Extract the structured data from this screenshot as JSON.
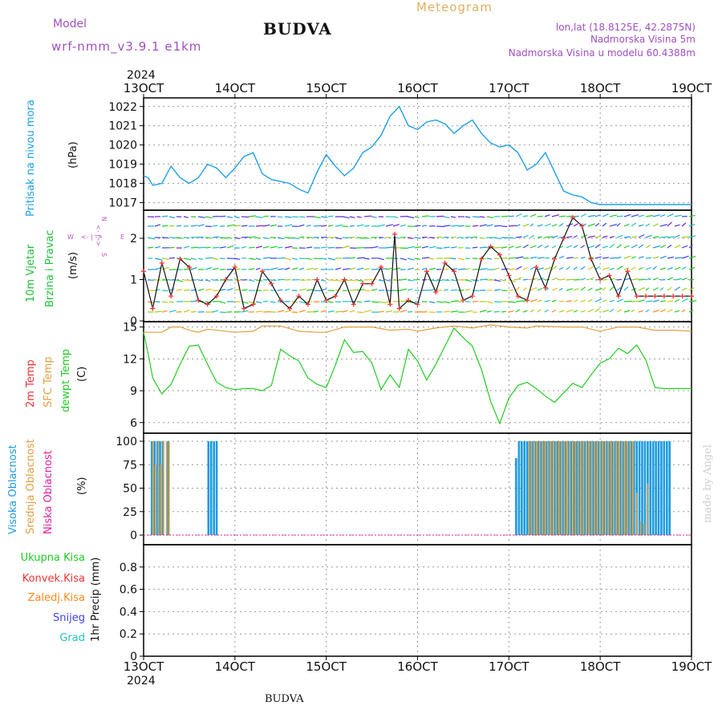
{
  "header": {
    "model_label": "Model",
    "model_name": "wrf-nmm_v3.9.1 e1km",
    "station": "BUDVA",
    "meteogram": "Meteogram",
    "lonlat": "lon,lat (18.8125E, 42.2875N)",
    "altitude": "Nadmorska Visina 5m",
    "model_altitude": "Nadmorska Visina u modelu 60.4388m",
    "year": "2024",
    "footer_station": "BUDVA",
    "watermark": "made by Angel"
  },
  "colors": {
    "pressure": "#1ea0e6",
    "wind_title": "#1fbf3a",
    "temp_2m": "#ee3333",
    "sfc_temp": "#e0a040",
    "dewpt": "#22cc22",
    "cloud_high": "#1e9be0",
    "cloud_mid": "#e0a040",
    "cloud_low": "#e020a0",
    "ukupna": "#22cc22",
    "konvek": "#ee3333",
    "zaledj": "#ff8820",
    "snijeg": "#4040ee",
    "grad": "#20c0c0",
    "direction": "#c050d0"
  },
  "x_ticks": [
    "13OCT",
    "14OCT",
    "15OCT",
    "16OCT",
    "17OCT",
    "18OCT",
    "19OCT"
  ],
  "panels": {
    "pressure": {
      "label": "Pritisak na nivou mora",
      "unit": "(hPa)"
    },
    "wind": {
      "label1": "10m Vjetar",
      "label2": "Brzina i Pravac",
      "unit": "(m/s)",
      "dir_n": "N",
      "dir_s": "S",
      "dir_w": "W",
      "dir_e": "E",
      "dir_arrow_h": "<- | ->",
      "dir_arrow_v": "<- | ->"
    },
    "temp": {
      "label1": "2m Temp",
      "label2": "SFC Temp",
      "label3": "dewpt Temp",
      "unit": "(C)"
    },
    "cloud": {
      "label1": "Visoka Oblacnost",
      "label2": "Srednja Oblacnost",
      "label3": "Niska Oblacnost",
      "unit": "(%)"
    },
    "precip": {
      "label1": "Ukupna Kisa",
      "label2": "Konvek.Kisa",
      "label3": "Zaledj.Kisa",
      "label4": "Snijeg",
      "label5": "Grad",
      "unit": "1hr Precip (mm)"
    }
  },
  "chart_data": [
    {
      "type": "line",
      "title": "Pritisak na nivou mora",
      "ylabel": "(hPa)",
      "xlim": [
        13,
        19
      ],
      "ylim": [
        1017,
        1022.3
      ],
      "yticks": [
        1017,
        1018,
        1019,
        1020,
        1021,
        1022
      ],
      "series": [
        {
          "name": "Pritisak na nivou mora",
          "x": [
            13.0,
            13.05,
            13.1,
            13.2,
            13.3,
            13.4,
            13.5,
            13.6,
            13.7,
            13.8,
            13.9,
            14.0,
            14.1,
            14.2,
            14.3,
            14.4,
            14.5,
            14.6,
            14.7,
            14.8,
            14.9,
            15.0,
            15.1,
            15.2,
            15.3,
            15.4,
            15.5,
            15.6,
            15.7,
            15.8,
            15.9,
            16.0,
            16.1,
            16.2,
            16.3,
            16.4,
            16.5,
            16.6,
            16.7,
            16.8,
            16.9,
            17.0,
            17.1,
            17.2,
            17.3,
            17.4,
            17.5,
            17.6,
            17.7,
            17.8,
            17.9,
            18.0,
            18.1,
            18.2,
            18.3,
            18.4,
            18.5,
            18.6,
            18.7,
            18.8,
            18.9,
            19.0
          ],
          "values": [
            1018.4,
            1018.3,
            1017.9,
            1018.0,
            1018.9,
            1018.3,
            1018.0,
            1018.3,
            1019.0,
            1018.8,
            1018.3,
            1018.8,
            1019.4,
            1019.6,
            1018.5,
            1018.2,
            1018.1,
            1018.0,
            1017.7,
            1017.5,
            1018.6,
            1019.5,
            1018.9,
            1018.4,
            1018.8,
            1019.6,
            1019.9,
            1020.5,
            1021.5,
            1022.0,
            1021.0,
            1020.8,
            1021.2,
            1021.3,
            1021.1,
            1020.6,
            1021.0,
            1021.3,
            1020.6,
            1020.1,
            1019.9,
            1020.0,
            1019.6,
            1018.7,
            1019.0,
            1019.6,
            1018.6,
            1017.6,
            1017.4,
            1017.3,
            1017.0,
            1016.9,
            1016.9,
            1016.9,
            1016.9,
            1016.9,
            1016.9,
            1016.9,
            1016.9,
            1016.9,
            1016.9,
            1016.9
          ]
        }
      ]
    },
    {
      "type": "line",
      "title": "10m Vjetar Brzina i Pravac",
      "ylabel": "(m/s)",
      "xlim": [
        13,
        19
      ],
      "ylim": [
        0,
        2.7
      ],
      "yticks": [
        0,
        1,
        2
      ],
      "series": [
        {
          "name": "10m Vjetar",
          "x": [
            13.0,
            13.1,
            13.2,
            13.3,
            13.4,
            13.5,
            13.6,
            13.7,
            13.8,
            13.9,
            14.0,
            14.1,
            14.2,
            14.3,
            14.4,
            14.5,
            14.6,
            14.7,
            14.8,
            14.9,
            15.0,
            15.1,
            15.2,
            15.3,
            15.4,
            15.5,
            15.6,
            15.7,
            15.75,
            15.8,
            15.9,
            16.0,
            16.1,
            16.2,
            16.3,
            16.4,
            16.5,
            16.6,
            16.7,
            16.8,
            16.9,
            17.0,
            17.1,
            17.2,
            17.3,
            17.4,
            17.5,
            17.6,
            17.7,
            17.8,
            17.9,
            18.0,
            18.1,
            18.2,
            18.3,
            18.4,
            18.5,
            18.6,
            18.7,
            18.8,
            18.9,
            19.0
          ],
          "values": [
            1.2,
            0.3,
            1.4,
            0.6,
            1.5,
            1.3,
            0.5,
            0.4,
            0.6,
            1.0,
            1.3,
            0.3,
            0.4,
            1.2,
            0.9,
            0.5,
            0.3,
            0.6,
            0.4,
            1.0,
            0.5,
            0.6,
            1.0,
            0.4,
            0.9,
            0.9,
            1.3,
            0.4,
            2.1,
            0.3,
            0.5,
            0.4,
            1.2,
            0.7,
            1.4,
            1.2,
            0.5,
            0.6,
            1.5,
            1.8,
            1.6,
            1.1,
            0.6,
            0.5,
            1.3,
            0.8,
            1.5,
            2.0,
            2.5,
            2.3,
            1.5,
            1.0,
            1.1,
            0.6,
            1.2,
            0.6,
            0.6,
            0.6,
            0.6,
            0.6,
            0.6,
            0.6
          ]
        }
      ]
    },
    {
      "type": "line",
      "title": "2m Temp / SFC Temp / dewpt Temp",
      "ylabel": "(C)",
      "xlim": [
        13,
        19
      ],
      "ylim": [
        5,
        15.5
      ],
      "yticks": [
        6,
        9,
        12,
        15
      ],
      "series": [
        {
          "name": "SFC Temp",
          "x": [
            13.0,
            13.2,
            13.3,
            13.4,
            13.5,
            13.6,
            13.7,
            14.0,
            14.2,
            14.3,
            14.5,
            14.7,
            14.9,
            15.0,
            15.2,
            15.5,
            15.7,
            15.9,
            16.0,
            16.2,
            16.4,
            16.6,
            16.8,
            17.0,
            17.2,
            17.3,
            17.6,
            17.8,
            18.0,
            18.2,
            18.4,
            18.6,
            18.8,
            19.0
          ],
          "values": [
            14.5,
            14.5,
            15.0,
            15.0,
            14.7,
            14.5,
            14.8,
            14.5,
            14.6,
            15.1,
            15.1,
            14.6,
            14.5,
            14.5,
            15.0,
            15.0,
            14.7,
            14.8,
            14.6,
            14.9,
            15.1,
            14.9,
            15.2,
            15.0,
            14.9,
            15.1,
            15.0,
            15.0,
            14.6,
            15.0,
            15.0,
            14.7,
            14.7,
            14.6
          ]
        },
        {
          "name": "dewpt Temp",
          "x": [
            13.0,
            13.05,
            13.1,
            13.2,
            13.3,
            13.4,
            13.5,
            13.6,
            13.7,
            13.8,
            13.9,
            14.0,
            14.1,
            14.2,
            14.3,
            14.4,
            14.5,
            14.6,
            14.7,
            14.8,
            14.9,
            15.0,
            15.1,
            15.2,
            15.3,
            15.4,
            15.5,
            15.6,
            15.7,
            15.8,
            15.9,
            16.0,
            16.1,
            16.2,
            16.3,
            16.4,
            16.5,
            16.6,
            16.7,
            16.8,
            16.9,
            17.0,
            17.1,
            17.2,
            17.3,
            17.4,
            17.5,
            17.6,
            17.7,
            17.8,
            17.9,
            18.0,
            18.1,
            18.2,
            18.3,
            18.4,
            18.5,
            18.6,
            18.7,
            18.8,
            18.9,
            19.0
          ],
          "values": [
            14.5,
            12.5,
            10.2,
            8.7,
            9.6,
            11.5,
            13.2,
            13.3,
            11.5,
            9.8,
            9.3,
            9.1,
            9.2,
            9.2,
            9.0,
            9.5,
            12.9,
            12.3,
            11.8,
            10.2,
            9.6,
            9.3,
            11.4,
            13.8,
            12.6,
            12.7,
            11.6,
            9.1,
            10.5,
            9.3,
            12.9,
            11.8,
            10.0,
            11.5,
            13.2,
            14.9,
            14.0,
            13.2,
            11.0,
            8.0,
            5.9,
            8.3,
            9.5,
            9.8,
            9.2,
            8.5,
            7.9,
            8.8,
            9.7,
            9.3,
            10.5,
            11.6,
            12.0,
            13.0,
            12.5,
            13.3,
            11.9,
            9.3,
            9.2,
            9.2,
            9.2,
            9.2
          ]
        }
      ]
    },
    {
      "type": "bar",
      "title": "Visoka / Srednja / Niska Oblacnost",
      "ylabel": "(%)",
      "xlim": [
        13,
        19
      ],
      "ylim": [
        0,
        100
      ],
      "yticks": [
        0,
        25,
        50,
        75,
        100
      ],
      "series": [
        {
          "name": "Visoka Oblacnost",
          "x": [
            13.09,
            13.12,
            13.15,
            13.18,
            13.21,
            13.27,
            13.71,
            13.74,
            13.77,
            13.8,
            17.08,
            17.11,
            17.14,
            17.17,
            17.2,
            17.23,
            17.26,
            17.29,
            17.32,
            17.35,
            17.38,
            17.41,
            17.44,
            17.47,
            17.5,
            17.53,
            17.56,
            17.59,
            17.62,
            17.65,
            17.68,
            17.71,
            17.74,
            17.77,
            17.8,
            17.83,
            17.86,
            17.89,
            17.92,
            17.95,
            17.98,
            18.01,
            18.04,
            18.07,
            18.1,
            18.13,
            18.16,
            18.19,
            18.22,
            18.25,
            18.28,
            18.31,
            18.34,
            18.37,
            18.4,
            18.43,
            18.46,
            18.49,
            18.52,
            18.55,
            18.58,
            18.61,
            18.64,
            18.67,
            18.7,
            18.73,
            18.76
          ],
          "values": [
            100,
            100,
            100,
            100,
            100,
            100,
            100,
            100,
            100,
            100,
            82,
            100,
            100,
            100,
            100,
            100,
            100,
            100,
            100,
            100,
            100,
            100,
            100,
            100,
            100,
            100,
            100,
            100,
            100,
            100,
            100,
            100,
            100,
            100,
            100,
            100,
            100,
            100,
            100,
            100,
            100,
            100,
            100,
            100,
            100,
            100,
            100,
            100,
            100,
            100,
            100,
            100,
            100,
            100,
            100,
            100,
            100,
            100,
            100,
            100,
            100,
            100,
            100,
            100,
            100,
            100,
            100
          ]
        },
        {
          "name": "Srednja Oblacnost",
          "x": [
            13.1,
            13.13,
            13.16,
            13.19,
            13.22,
            13.25,
            13.28,
            17.22,
            17.25,
            17.28,
            17.31,
            17.34,
            17.37,
            17.4,
            17.43,
            17.46,
            17.49,
            17.52,
            17.55,
            17.58,
            17.61,
            17.64,
            17.67,
            17.7,
            17.73,
            17.76,
            17.79,
            17.82,
            17.85,
            17.88,
            17.91,
            17.94,
            17.97,
            18.0,
            18.03,
            18.06,
            18.09,
            18.12,
            18.15,
            18.18,
            18.21,
            18.24,
            18.27,
            18.3,
            18.33,
            18.36,
            18.4,
            18.44,
            18.48,
            18.52
          ],
          "values": [
            100,
            75,
            100,
            75,
            100,
            100,
            100,
            100,
            100,
            100,
            100,
            100,
            100,
            100,
            100,
            100,
            100,
            100,
            100,
            100,
            100,
            100,
            100,
            100,
            100,
            100,
            100,
            100,
            100,
            100,
            100,
            100,
            100,
            100,
            100,
            100,
            100,
            100,
            100,
            100,
            100,
            100,
            100,
            100,
            100,
            100,
            45,
            15,
            12,
            55
          ]
        },
        {
          "name": "Niska Oblacnost",
          "x": [],
          "values": []
        }
      ]
    },
    {
      "type": "bar",
      "title": "1hr Precip",
      "ylabel": "1hr Precip (mm)",
      "xlim": [
        13,
        19
      ],
      "ylim": [
        0,
        1
      ],
      "yticks": [
        0,
        0.2,
        0.4,
        0.6,
        0.8
      ],
      "series": [
        {
          "name": "Ukupna Kisa",
          "x": [],
          "values": []
        },
        {
          "name": "Konvek.Kisa",
          "x": [],
          "values": []
        },
        {
          "name": "Zaledj.Kisa",
          "x": [],
          "values": []
        },
        {
          "name": "Snijeg",
          "x": [],
          "values": []
        },
        {
          "name": "Grad",
          "x": [],
          "values": []
        }
      ]
    }
  ]
}
